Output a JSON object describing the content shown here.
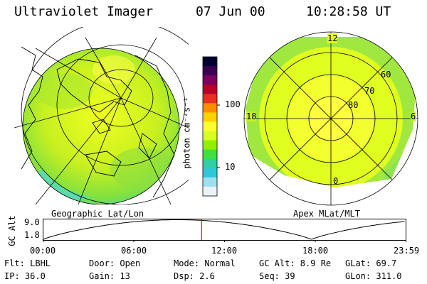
{
  "header": {
    "instrument": "Ultraviolet Imager",
    "date": "07 Jun 00",
    "time": "10:28:58 UT"
  },
  "colorbar": {
    "unit_label": "photon cm⁻²s⁻¹",
    "ticks": [
      "100",
      "10"
    ],
    "colors": [
      "#000030",
      "#3a0050",
      "#7a0060",
      "#b8002a",
      "#e83020",
      "#ff8c00",
      "#ffd200",
      "#ffff30",
      "#d8ff20",
      "#90f000",
      "#40e040",
      "#30d0a0",
      "#30c8d8",
      "#a0e0ee",
      "#e8f4f8"
    ]
  },
  "left_panel": {
    "caption": "Geographic Lat/Lon"
  },
  "right_panel": {
    "caption": "Apex MLat/MLT",
    "mlt_labels": {
      "top": "12",
      "left": "18",
      "right": "6",
      "bottom": "0"
    },
    "lat_labels": [
      "60",
      "70",
      "80"
    ]
  },
  "altitude_plot": {
    "ylabel": "GC Alt",
    "yticks": [
      "9.0",
      "1.8"
    ],
    "xticks": [
      "00:00",
      "06:00",
      "12:00",
      "18:00",
      "23:59"
    ],
    "marker_time_hours": 10.48,
    "marker_color": "#ff0000"
  },
  "info": {
    "row1": [
      "Flt: LBHL",
      "Door: Open",
      "Mode: Normal",
      "GC Alt: 8.9 Re",
      "GLat:  69.7"
    ],
    "row2": [
      "IP: 36.0",
      "Gain: 13",
      "Dsp:    2.6",
      "Seq: 39",
      "GLon: 311.0"
    ]
  }
}
